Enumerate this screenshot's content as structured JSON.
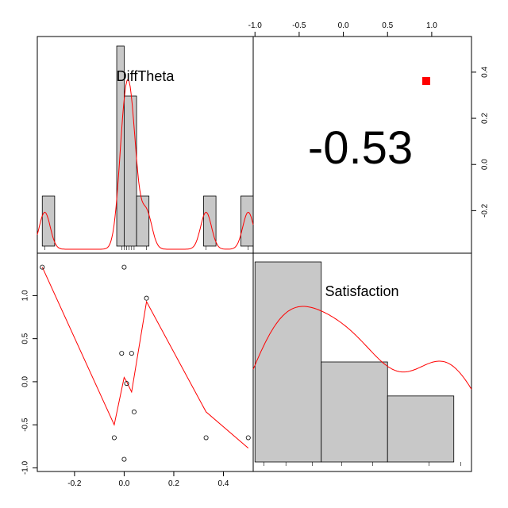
{
  "chart_data": {
    "type": "scatter-matrix",
    "variables": [
      "DiffTheta",
      "Satisfaction"
    ],
    "correlation_label": "-0.53",
    "correlation_marker_color": "#ff0000",
    "curve_color": "#ff0000",
    "bar_fill": "#c8c8c8",
    "diagonal": [
      {
        "variable": "DiffTheta",
        "type": "histogram",
        "xlim": [
          -0.35,
          0.52
        ],
        "bins": [
          {
            "x0": -0.33,
            "x1": -0.28,
            "rel_height": 0.25
          },
          {
            "x0": -0.03,
            "x1": 0.0,
            "rel_height": 1.0
          },
          {
            "x0": 0.0,
            "x1": 0.05,
            "rel_height": 0.75
          },
          {
            "x0": 0.05,
            "x1": 0.1,
            "rel_height": 0.25
          },
          {
            "x0": 0.32,
            "x1": 0.37,
            "rel_height": 0.25
          },
          {
            "x0": 0.47,
            "x1": 0.52,
            "rel_height": 0.25
          }
        ],
        "rug": [
          -0.32,
          -0.01,
          0.0,
          0.01,
          0.02,
          0.03,
          0.04,
          0.09,
          0.33,
          0.5
        ]
      },
      {
        "variable": "Satisfaction",
        "type": "histogram",
        "xlim": [
          -1.02,
          1.45
        ],
        "bins": [
          {
            "x0": -1.0,
            "x1": -0.25,
            "rel_height": 1.0
          },
          {
            "x0": -0.25,
            "x1": 0.5,
            "rel_height": 0.5
          },
          {
            "x0": 0.5,
            "x1": 1.25,
            "rel_height": 0.33
          }
        ],
        "rug": [
          -0.9,
          -0.65,
          -0.35,
          -0.02,
          0.33,
          0.97,
          1.33
        ]
      }
    ],
    "scatter": {
      "xlabel": "",
      "ylabel": "",
      "xlim": [
        -0.35,
        0.52
      ],
      "ylim": [
        -0.95,
        1.4
      ],
      "x_ticks": [
        "-0.2",
        "0.0",
        "0.2",
        "0.4"
      ],
      "y_ticks": [
        "-1.0",
        "-0.5",
        "0.0",
        "0.5",
        "1.0"
      ],
      "points": [
        {
          "x": -0.33,
          "y": 1.33
        },
        {
          "x": -0.04,
          "y": -0.65
        },
        {
          "x": -0.01,
          "y": 0.33
        },
        {
          "x": 0.0,
          "y": 1.33
        },
        {
          "x": 0.0,
          "y": -0.9
        },
        {
          "x": 0.01,
          "y": -0.02
        },
        {
          "x": 0.03,
          "y": 0.33
        },
        {
          "x": 0.04,
          "y": -0.35
        },
        {
          "x": 0.09,
          "y": 0.97
        },
        {
          "x": 0.33,
          "y": -0.65
        },
        {
          "x": 0.5,
          "y": -0.65
        }
      ],
      "smooth_line": [
        {
          "x": -0.33,
          "y": 1.33
        },
        {
          "x": -0.04,
          "y": -0.5
        },
        {
          "x": 0.0,
          "y": 0.05
        },
        {
          "x": 0.01,
          "y": 0.0
        },
        {
          "x": 0.03,
          "y": -0.12
        },
        {
          "x": 0.09,
          "y": 0.93
        },
        {
          "x": 0.33,
          "y": -0.35
        },
        {
          "x": 0.5,
          "y": -0.77
        }
      ]
    },
    "top_axis": {
      "xlim": [
        -1.02,
        1.45
      ],
      "ticks": [
        "-1.0",
        "-0.5",
        "0.0",
        "0.5",
        "1.0"
      ]
    },
    "right_axis": {
      "ylim": [
        -0.35,
        0.52
      ],
      "ticks": [
        "-0.2",
        "0.0",
        "0.2",
        "0.4"
      ]
    }
  }
}
